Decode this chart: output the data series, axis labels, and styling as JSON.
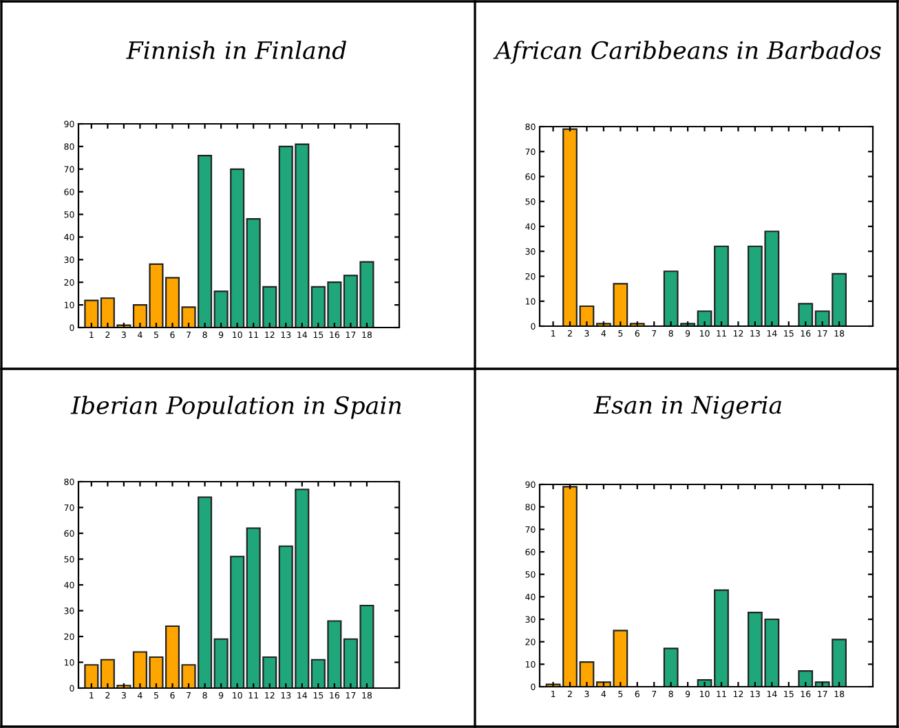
{
  "chart_data": [
    {
      "type": "bar",
      "title": "Finnish in Finland",
      "categories": [
        "1",
        "2",
        "3",
        "4",
        "5",
        "6",
        "7",
        "8",
        "9",
        "10",
        "11",
        "12",
        "13",
        "14",
        "15",
        "16",
        "17",
        "18"
      ],
      "values": [
        12,
        13,
        1,
        10,
        28,
        22,
        9,
        76,
        16,
        70,
        48,
        18,
        80,
        81,
        18,
        20,
        23,
        29
      ],
      "colors": [
        "#ffa500",
        "#ffa500",
        "#ffa500",
        "#ffa500",
        "#ffa500",
        "#ffa500",
        "#ffa500",
        "#1fa77b",
        "#1fa77b",
        "#1fa77b",
        "#1fa77b",
        "#1fa77b",
        "#1fa77b",
        "#1fa77b",
        "#1fa77b",
        "#1fa77b",
        "#1fa77b",
        "#1fa77b"
      ],
      "ylim": [
        0,
        90
      ],
      "yticks": [
        0,
        10,
        20,
        30,
        40,
        50,
        60,
        70,
        80,
        90
      ],
      "grid": false,
      "legend": false
    },
    {
      "type": "bar",
      "title": "African Caribbeans in Barbados",
      "categories": [
        "1",
        "2",
        "3",
        "4",
        "5",
        "6",
        "7",
        "8",
        "9",
        "10",
        "11",
        "12",
        "13",
        "14",
        "15",
        "16",
        "17",
        "18"
      ],
      "values": [
        null,
        79,
        8,
        1,
        17,
        1,
        null,
        22,
        1,
        6,
        32,
        null,
        32,
        38,
        null,
        9,
        6,
        21
      ],
      "colors": [
        "#ffa500",
        "#ffa500",
        "#ffa500",
        "#ffa500",
        "#ffa500",
        "#ffa500",
        "#ffa500",
        "#1fa77b",
        "#1fa77b",
        "#1fa77b",
        "#1fa77b",
        "#1fa77b",
        "#1fa77b",
        "#1fa77b",
        "#1fa77b",
        "#1fa77b",
        "#1fa77b",
        "#1fa77b"
      ],
      "ylim": [
        0,
        80
      ],
      "yticks": [
        0,
        10,
        20,
        30,
        40,
        50,
        60,
        70,
        80
      ],
      "grid": false,
      "legend": false
    },
    {
      "type": "bar",
      "title": "Iberian Population in Spain",
      "categories": [
        "1",
        "2",
        "3",
        "4",
        "5",
        "6",
        "7",
        "8",
        "9",
        "10",
        "11",
        "12",
        "13",
        "14",
        "15",
        "16",
        "17",
        "18"
      ],
      "values": [
        9,
        11,
        1,
        14,
        12,
        24,
        9,
        74,
        19,
        51,
        62,
        12,
        55,
        77,
        11,
        26,
        19,
        32
      ],
      "colors": [
        "#ffa500",
        "#ffa500",
        "#ffa500",
        "#ffa500",
        "#ffa500",
        "#ffa500",
        "#ffa500",
        "#1fa77b",
        "#1fa77b",
        "#1fa77b",
        "#1fa77b",
        "#1fa77b",
        "#1fa77b",
        "#1fa77b",
        "#1fa77b",
        "#1fa77b",
        "#1fa77b",
        "#1fa77b"
      ],
      "ylim": [
        0,
        80
      ],
      "yticks": [
        0,
        10,
        20,
        30,
        40,
        50,
        60,
        70,
        80
      ],
      "grid": false,
      "legend": false
    },
    {
      "type": "bar",
      "title": "Esan in Nigeria",
      "categories": [
        "1",
        "2",
        "3",
        "4",
        "5",
        "6",
        "7",
        "8",
        "9",
        "10",
        "11",
        "12",
        "13",
        "14",
        "15",
        "16",
        "17",
        "18"
      ],
      "values": [
        1,
        89,
        11,
        2,
        25,
        null,
        null,
        17,
        null,
        3,
        43,
        null,
        33,
        30,
        null,
        7,
        2,
        21
      ],
      "colors": [
        "#ffa500",
        "#ffa500",
        "#ffa500",
        "#ffa500",
        "#ffa500",
        "#ffa500",
        "#ffa500",
        "#1fa77b",
        "#1fa77b",
        "#1fa77b",
        "#1fa77b",
        "#1fa77b",
        "#1fa77b",
        "#1fa77b",
        "#1fa77b",
        "#1fa77b",
        "#1fa77b",
        "#1fa77b"
      ],
      "ylim": [
        0,
        90
      ],
      "yticks": [
        0,
        10,
        20,
        30,
        40,
        50,
        60,
        70,
        80,
        90
      ],
      "grid": false,
      "legend": false
    }
  ]
}
